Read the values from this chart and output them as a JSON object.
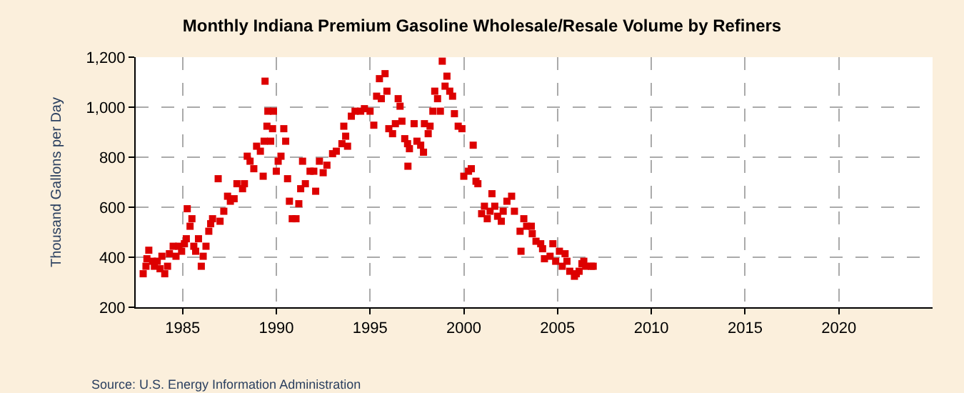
{
  "chart_data": {
    "type": "scatter",
    "title": "Monthly Indiana Premium Gasoline Wholesale/Resale Volume by Refiners",
    "ylabel": "Thousand Gallons per Day",
    "annotations": [
      "Source: U.S. Energy Information Administration"
    ],
    "x": [
      1982.9,
      1983.05,
      1983.1,
      1983.2,
      1983.4,
      1983.5,
      1983.65,
      1983.8,
      1983.9,
      1984.05,
      1984.2,
      1984.3,
      1984.5,
      1984.65,
      1984.8,
      1984.95,
      1985.1,
      1985.2,
      1985.25,
      1985.4,
      1985.5,
      1985.6,
      1985.7,
      1985.85,
      1986,
      1986.1,
      1986.25,
      1986.4,
      1986.5,
      1986.6,
      1986.9,
      1987,
      1987.2,
      1987.4,
      1987.55,
      1987.75,
      1987.9,
      1988.2,
      1988.3,
      1988.45,
      1988.6,
      1988.8,
      1988.95,
      1989.15,
      1989.3,
      1989.35,
      1989.4,
      1989.5,
      1989.55,
      1989.7,
      1989.8,
      1989.85,
      1990,
      1990.1,
      1990.25,
      1990.4,
      1990.5,
      1990.6,
      1990.7,
      1990.85,
      1991.05,
      1991.2,
      1991.3,
      1991.4,
      1991.55,
      1991.8,
      1992,
      1992.1,
      1992.3,
      1992.5,
      1992.7,
      1993,
      1993.2,
      1993.5,
      1993.6,
      1993.7,
      1993.8,
      1994,
      1994.2,
      1994.5,
      1994.7,
      1995,
      1995.2,
      1995.35,
      1995.5,
      1995.6,
      1995.8,
      1995.9,
      1996,
      1996.2,
      1996.35,
      1996.5,
      1996.6,
      1996.7,
      1996.85,
      1997,
      1997.02,
      1997.1,
      1997.35,
      1997.5,
      1997.7,
      1997.85,
      1997.9,
      1998.1,
      1998.2,
      1998.35,
      1998.45,
      1998.6,
      1998.75,
      1998.85,
      1999,
      1999.1,
      1999.25,
      1999.4,
      1999.5,
      1999.7,
      1999.9,
      2000,
      2000.25,
      2000.4,
      2000.5,
      2000.65,
      2000.75,
      2000.95,
      2001.1,
      2001.25,
      2001.4,
      2001.5,
      2001.65,
      2001.8,
      2002,
      2002.1,
      2002.3,
      2002.55,
      2002.7,
      2003,
      2003.05,
      2003.2,
      2003.35,
      2003.6,
      2003.65,
      2003.85,
      2004.1,
      2004.2,
      2004.3,
      2004.6,
      2004.75,
      2004.9,
      2005.1,
      2005.25,
      2005.4,
      2005.5,
      2005.65,
      2005.9,
      2006,
      2006.15,
      2006.3,
      2006.4,
      2006.5,
      2006.8,
      2006.9
    ],
    "values": [
      334,
      364,
      394,
      428,
      384,
      364,
      384,
      354,
      404,
      334,
      364,
      414,
      444,
      404,
      444,
      424,
      454,
      474,
      594,
      524,
      554,
      444,
      424,
      474,
      364,
      404,
      444,
      504,
      534,
      554,
      714,
      544,
      584,
      644,
      624,
      634,
      694,
      674,
      694,
      804,
      784,
      754,
      844,
      824,
      724,
      864,
      1104,
      924,
      984,
      864,
      914,
      984,
      744,
      784,
      804,
      914,
      864,
      714,
      624,
      554,
      554,
      614,
      674,
      784,
      694,
      744,
      744,
      664,
      784,
      738,
      768,
      814,
      824,
      854,
      924,
      884,
      844,
      964,
      984,
      984,
      994,
      984,
      928,
      1044,
      1114,
      1034,
      1134,
      1064,
      914,
      894,
      934,
      1034,
      1004,
      944,
      874,
      854,
      764,
      834,
      934,
      864,
      848,
      820,
      934,
      894,
      924,
      984,
      1064,
      1034,
      984,
      1184,
      1084,
      1124,
      1064,
      1044,
      974,
      924,
      914,
      724,
      744,
      754,
      848,
      704,
      694,
      574,
      604,
      554,
      584,
      654,
      604,
      564,
      544,
      584,
      624,
      644,
      584,
      504,
      424,
      554,
      524,
      524,
      494,
      464,
      454,
      434,
      394,
      404,
      454,
      384,
      424,
      364,
      414,
      384,
      344,
      324,
      334,
      344,
      374,
      384,
      364,
      364,
      364
    ],
    "color": "#dd0000",
    "marker": "square",
    "xlim": [
      1982.5,
      2025
    ],
    "xticks": [
      1985,
      1990,
      1995,
      2000,
      2005,
      2010,
      2015,
      2020
    ],
    "ylim": [
      200,
      1200
    ],
    "yticks": [
      {
        "value": 200,
        "label": "200"
      },
      {
        "value": 400,
        "label": "400"
      },
      {
        "value": 600,
        "label": "600"
      },
      {
        "value": 800,
        "label": "800"
      },
      {
        "value": 1000,
        "label": "1,000"
      },
      {
        "value": 1200,
        "label": "1,200"
      }
    ],
    "grid": true
  }
}
